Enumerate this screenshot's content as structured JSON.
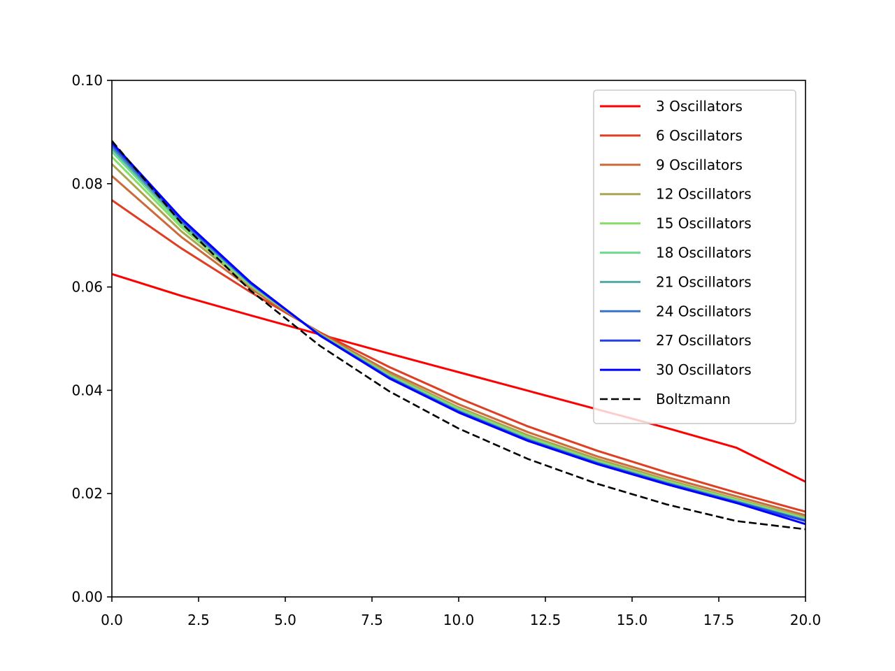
{
  "chart_data": {
    "type": "line",
    "title": "",
    "xlabel": "",
    "ylabel": "",
    "xlim": [
      0,
      20
    ],
    "ylim": [
      0,
      0.1
    ],
    "grid": false,
    "legend_position": "top-right",
    "x_ticks": [
      "0.0",
      "2.5",
      "5.0",
      "7.5",
      "10.0",
      "12.5",
      "15.0",
      "17.5",
      "20.0"
    ],
    "y_ticks": [
      "0.00",
      "0.02",
      "0.04",
      "0.06",
      "0.08",
      "0.10"
    ],
    "x": [
      0,
      2,
      4,
      6,
      8,
      10,
      12,
      14,
      16,
      18,
      20
    ],
    "series": [
      {
        "name": "3 Oscillators",
        "color": "#ff0000",
        "dashed": false,
        "values": [
          0.0625,
          0.0583,
          0.0545,
          0.0508,
          0.0471,
          0.0435,
          0.0399,
          0.0363,
          0.0327,
          0.0289,
          0.0223
        ]
      },
      {
        "name": "6 Oscillators",
        "color": "#de3e24",
        "dashed": false,
        "values": [
          0.0768,
          0.0675,
          0.059,
          0.0512,
          0.0445,
          0.0385,
          0.033,
          0.0283,
          0.0241,
          0.0202,
          0.0165
        ]
      },
      {
        "name": "9 Oscillators",
        "color": "#c96b3a",
        "dashed": false,
        "values": [
          0.0815,
          0.0697,
          0.0597,
          0.051,
          0.0436,
          0.0373,
          0.0319,
          0.0272,
          0.0232,
          0.0195,
          0.0158
        ]
      },
      {
        "name": "12 Oscillators",
        "color": "#aba552",
        "dashed": false,
        "values": [
          0.0838,
          0.0708,
          0.0601,
          0.0509,
          0.0432,
          0.0367,
          0.0313,
          0.0267,
          0.0227,
          0.019,
          0.0154
        ]
      },
      {
        "name": "15 Oscillators",
        "color": "#88dd66",
        "dashed": false,
        "values": [
          0.0852,
          0.0716,
          0.0603,
          0.0508,
          0.0429,
          0.0364,
          0.0309,
          0.0263,
          0.0224,
          0.0188,
          0.0152
        ]
      },
      {
        "name": "18 Oscillators",
        "color": "#6dde8c",
        "dashed": false,
        "values": [
          0.0862,
          0.0721,
          0.0605,
          0.0508,
          0.0427,
          0.0362,
          0.0307,
          0.0261,
          0.0222,
          0.0186,
          0.015
        ]
      },
      {
        "name": "21 Oscillators",
        "color": "#52aaa9",
        "dashed": false,
        "values": [
          0.0868,
          0.0725,
          0.0606,
          0.0507,
          0.0426,
          0.036,
          0.0305,
          0.026,
          0.0221,
          0.0185,
          0.0149
        ]
      },
      {
        "name": "24 Oscillators",
        "color": "#3a72ca",
        "dashed": false,
        "values": [
          0.0873,
          0.0728,
          0.0607,
          0.0507,
          0.0425,
          0.0359,
          0.0304,
          0.0259,
          0.022,
          0.0184,
          0.0148
        ]
      },
      {
        "name": "27 Oscillators",
        "color": "#2240ea",
        "dashed": false,
        "values": [
          0.0877,
          0.0731,
          0.0608,
          0.0506,
          0.0424,
          0.0358,
          0.0303,
          0.0258,
          0.0219,
          0.0183,
          0.0147
        ]
      },
      {
        "name": "30 Oscillators",
        "color": "#0000ff",
        "dashed": false,
        "values": [
          0.088,
          0.0733,
          0.0609,
          0.0506,
          0.0423,
          0.0357,
          0.0302,
          0.0257,
          0.0218,
          0.0182,
          0.0141
        ]
      },
      {
        "name": "Boltzmann",
        "color": "#000000",
        "dashed": true,
        "values": [
          0.0883,
          0.0724,
          0.0593,
          0.0486,
          0.0398,
          0.0326,
          0.0267,
          0.0219,
          0.0179,
          0.0147,
          0.0131
        ]
      }
    ]
  }
}
